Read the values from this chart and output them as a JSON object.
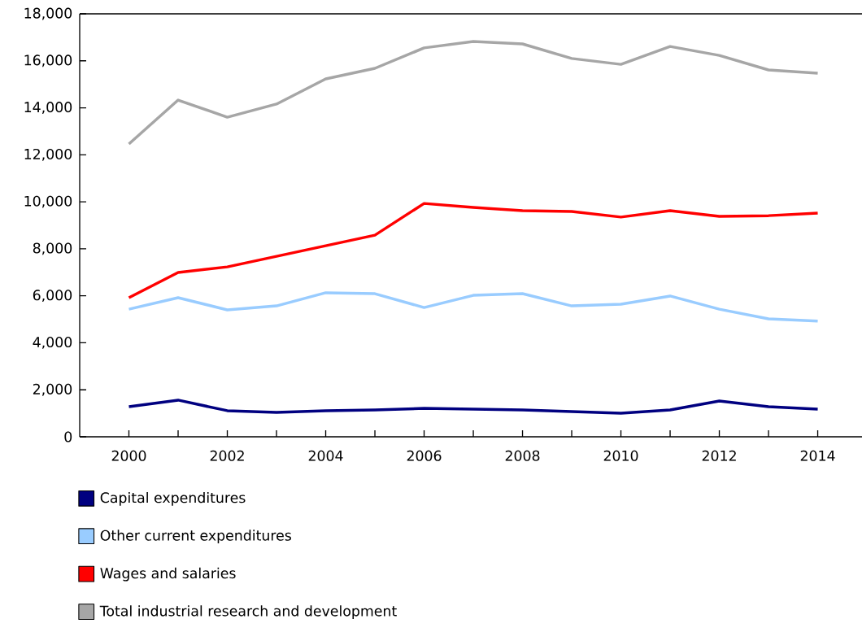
{
  "chart_data": {
    "type": "line",
    "x": [
      2000,
      2001,
      2002,
      2003,
      2004,
      2005,
      2006,
      2007,
      2008,
      2009,
      2010,
      2011,
      2012,
      2013,
      2014
    ],
    "series": [
      {
        "name": "Capital expenditures",
        "color": "#000080",
        "values": [
          1280,
          1560,
          1110,
          1040,
          1110,
          1140,
          1210,
          1180,
          1140,
          1070,
          1000,
          1140,
          1520,
          1280,
          1180
        ]
      },
      {
        "name": "Other current expenditures",
        "color": "#99ccff",
        "values": [
          5430,
          5920,
          5400,
          5570,
          6130,
          6090,
          5500,
          6020,
          6090,
          5570,
          5640,
          5990,
          5430,
          5020,
          4920
        ]
      },
      {
        "name": "Wages and salaries",
        "color": "#ff0000",
        "values": [
          5920,
          6990,
          7230,
          7680,
          8130,
          8580,
          9930,
          9760,
          9620,
          9590,
          9350,
          9620,
          9380,
          9410,
          9520
        ]
      },
      {
        "name": "Total industrial research and development",
        "color": "#a6a6a6",
        "values": [
          12460,
          14330,
          13600,
          14160,
          15230,
          15680,
          16550,
          16820,
          16720,
          16100,
          15850,
          16610,
          16230,
          15610,
          15470
        ]
      }
    ],
    "xlim": [
      1999,
      2014.9
    ],
    "ylim": [
      0,
      18000
    ],
    "xticks": [
      2000,
      {
        "value": 2001,
        "label": null
      },
      2002,
      {
        "value": 2003,
        "label": null
      },
      2004,
      {
        "value": 2005,
        "label": null
      },
      2006,
      {
        "value": 2007,
        "label": null
      },
      2008,
      {
        "value": 2009,
        "label": null
      },
      2010,
      {
        "value": 2011,
        "label": null
      },
      2012,
      {
        "value": 2013,
        "label": null
      },
      2014
    ],
    "yticks": [
      0,
      {
        "value": 2000,
        "label": "2,000"
      },
      {
        "value": 4000,
        "label": "4,000"
      },
      {
        "value": 6000,
        "label": "6,000"
      },
      {
        "value": 8000,
        "label": "8,000"
      },
      {
        "value": 10000,
        "label": "10,000"
      },
      {
        "value": 12000,
        "label": "12,000"
      },
      {
        "value": 14000,
        "label": "14,000"
      },
      {
        "value": 16000,
        "label": "16,000"
      },
      {
        "value": 18000,
        "label": "18,000"
      }
    ],
    "grid": false,
    "legend": "bottom",
    "marker": "none",
    "line_style": "solid"
  }
}
